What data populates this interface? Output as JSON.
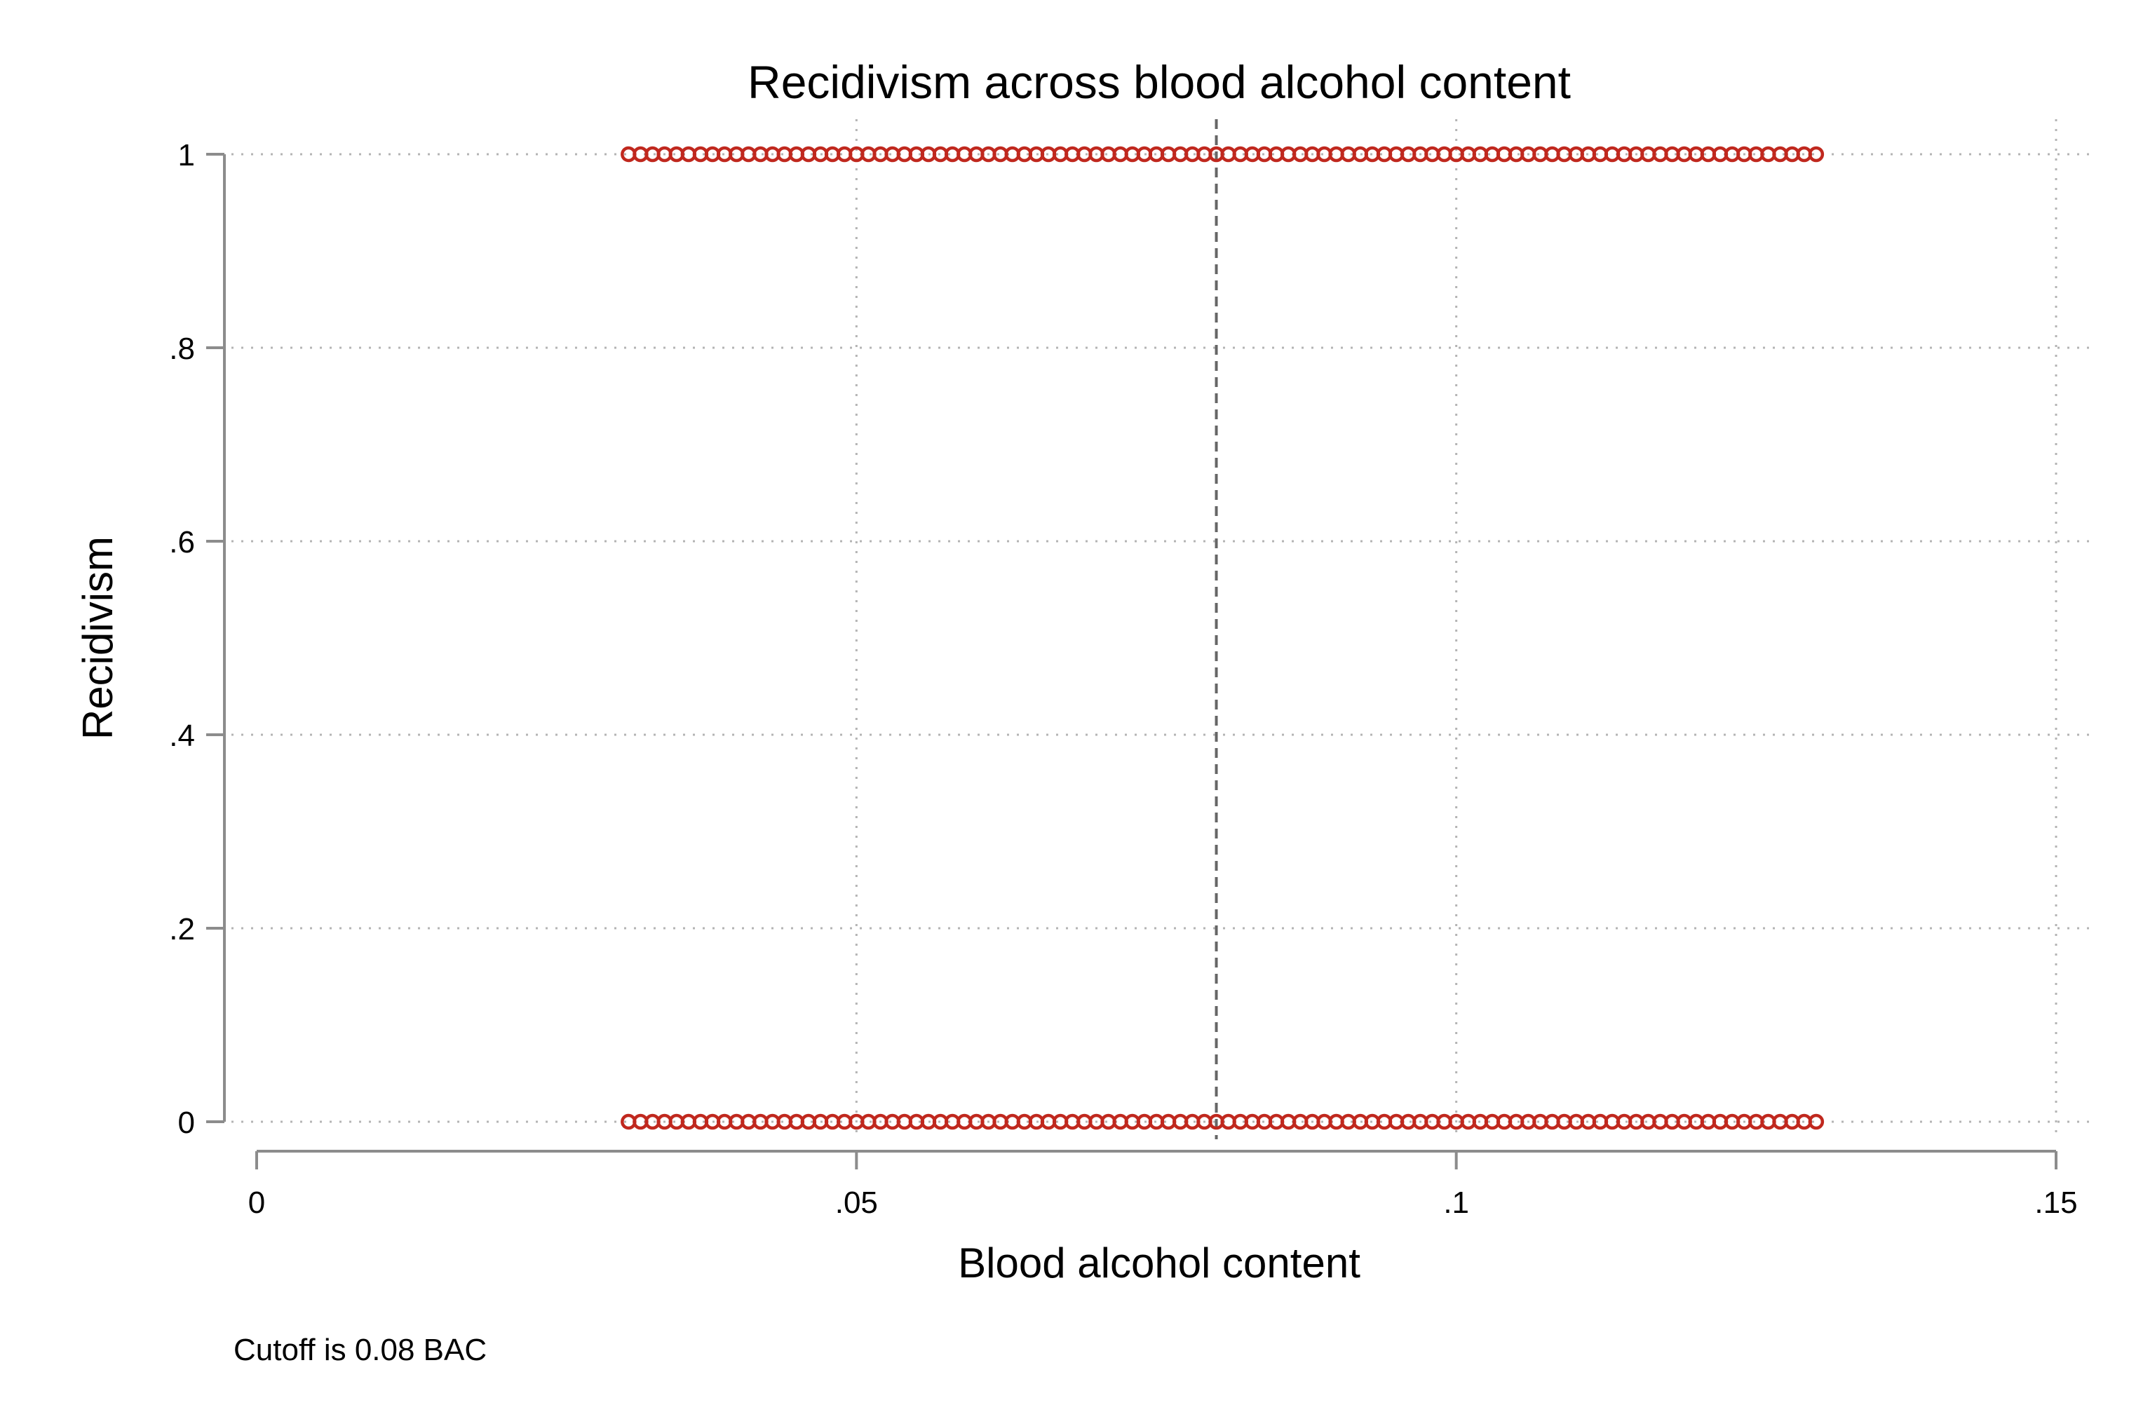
{
  "chart_data": {
    "type": "scatter",
    "title": "Recidivism across blood alcohol content",
    "xlabel": "Blood alcohol content",
    "ylabel": "Recidivism",
    "note": "Cutoff is 0.08 BAC",
    "xlim": [
      0,
      0.15
    ],
    "ylim": [
      0,
      1
    ],
    "x_ticks": [
      0,
      0.05,
      0.1,
      0.15
    ],
    "x_tick_labels": [
      "0",
      ".05",
      ".1",
      ".15"
    ],
    "y_ticks": [
      0,
      0.2,
      0.4,
      0.6,
      0.8,
      1
    ],
    "y_tick_labels": [
      "0",
      ".2",
      ".4",
      ".6",
      ".8",
      "1"
    ],
    "grid": true,
    "cutoff": 0.08,
    "marker_color": "#c0281e",
    "cutoff_line_color": "#666666",
    "x_range_of_points": [
      0.031,
      0.13
    ],
    "x_step": 0.001,
    "y_levels": [
      0,
      1
    ]
  }
}
